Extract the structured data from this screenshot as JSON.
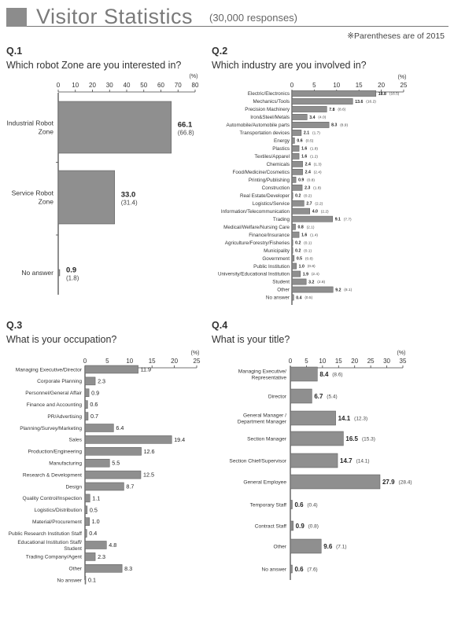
{
  "header": {
    "title": "Visitor Statistics",
    "subtitle": "(30,000 responses)",
    "note": "※Parentheses are of 2015"
  },
  "colors": {
    "bar": "#8f8f8f",
    "bar_stroke": "#555555",
    "axis": "#444444",
    "title": "#7a7a7a"
  },
  "chart_data": [
    {
      "id": "q1",
      "type": "bar",
      "orientation": "horizontal",
      "qnum": "Q.1",
      "question": "Which robot Zone are you interested in?",
      "unit": "(%)",
      "xlim": [
        0,
        80
      ],
      "ticks": [
        0,
        10,
        20,
        30,
        40,
        50,
        60,
        70,
        80
      ],
      "categories": [
        [
          "Industrial Robot",
          "Zone"
        ],
        [
          "Service Robot",
          "Zone"
        ],
        [
          "No answer"
        ]
      ],
      "values": [
        66.1,
        33.0,
        0.9
      ],
      "value_labels": [
        "66.1",
        "33.0",
        "0.9"
      ],
      "prev_labels": [
        "(66.8)",
        "(31.4)",
        "(1.8)"
      ]
    },
    {
      "id": "q2",
      "type": "bar",
      "orientation": "horizontal",
      "qnum": "Q.2",
      "question": "Which industry are you involved in?",
      "unit": "(%)",
      "xlim": [
        0,
        25
      ],
      "ticks": [
        0,
        5,
        10,
        15,
        20,
        25
      ],
      "categories": [
        "Electric/Electronics",
        "Mechanics/Tools",
        "Precision Machinery",
        "Iron&Steel/Metals",
        "Automobile/Automobile parts",
        "Transportation devices",
        "Energy",
        "Plastics",
        "Textiles/Apparel",
        "Chemicals",
        "Food/Medicine/Cosmetics",
        "Printing/Publishing",
        "Construction",
        "Real Estate/Developer",
        "Logistics/Service",
        "Information/Telecommunication",
        "Trading",
        "Medical/Welfare/Nursing Care",
        "Finance/Insurance",
        "Agriculture/Forestry/Fisheries",
        "Municipality",
        "Government",
        "Public Institution",
        "University/Educational Institution",
        "Student",
        "Other",
        "No answer"
      ],
      "values": [
        18.8,
        13.6,
        7.8,
        3.4,
        8.3,
        2.1,
        0.6,
        1.6,
        1.6,
        2.4,
        2.4,
        0.9,
        2.3,
        0.2,
        2.7,
        4.0,
        9.1,
        0.8,
        1.6,
        0.2,
        0.2,
        0.5,
        1.0,
        1.9,
        3.2,
        9.2,
        0.4
      ],
      "value_labels": [
        "18.8",
        "13.6",
        "7.8",
        "3.4",
        "8.3",
        "2.1",
        "0.6",
        "1.6",
        "1.6",
        "2.4",
        "2.4",
        "0.9",
        "2.3",
        "0.2",
        "2.7",
        "4.0",
        "9.1",
        "0.8",
        "1.6",
        "0.2",
        "0.2",
        "0.5",
        "1.0",
        "1.9",
        "3.2",
        "9.2",
        "0.4"
      ],
      "prev_labels": [
        "(16.5)",
        "(16.2)",
        "(8.6)",
        "(4.0)",
        "(8.9)",
        "(1.7)",
        "(0.5)",
        "(1.8)",
        "(1.2)",
        "(1.3)",
        "(2.4)",
        "(0.8)",
        "(1.8)",
        "(0.2)",
        "(2.2)",
        "(2.2)",
        "(7.7)",
        "(2.1)",
        "(1.4)",
        "(0.1)",
        "(0.1)",
        "(0.8)",
        "(0.8)",
        "(2.4)",
        "(2.8)",
        "(8.1)",
        "(0.5)"
      ]
    },
    {
      "id": "q3",
      "type": "bar",
      "orientation": "horizontal",
      "qnum": "Q.3",
      "question": "What is your occupation?",
      "unit": "(%)",
      "xlim": [
        0,
        25
      ],
      "ticks": [
        0,
        5,
        10,
        15,
        20,
        25
      ],
      "categories": [
        "Managing Executive/Director",
        "Corporate Planning",
        "Personnel/General Affair",
        "Finance and Accounting",
        "PR/Advertising",
        "Planning/Survey/Marketing",
        "Sales",
        "Production/Engineering",
        "Manufacturing",
        "Research & Development",
        "Design",
        "Quality Control/Inspection",
        "Logistics/Distribution",
        "Material/Procurement",
        "Public Research Institution Staff",
        [
          "Educational Institution Staff/",
          "Student"
        ],
        "Trading Company/Agent",
        "Other",
        "No answer"
      ],
      "values": [
        11.9,
        2.3,
        0.9,
        0.6,
        0.7,
        6.4,
        19.4,
        12.6,
        5.5,
        12.5,
        8.7,
        1.1,
        0.5,
        1.0,
        0.4,
        4.8,
        2.3,
        8.3,
        0.1
      ],
      "value_labels": [
        "11.9",
        "2.3",
        "0.9",
        "0.6",
        "0.7",
        "6.4",
        "19.4",
        "12.6",
        "5.5",
        "12.5",
        "8.7",
        "1.1",
        "0.5",
        "1.0",
        "0.4",
        "4.8",
        "2.3",
        "8.3",
        "0.1"
      ]
    },
    {
      "id": "q4",
      "type": "bar",
      "orientation": "horizontal",
      "qnum": "Q.4",
      "question": "What is your title?",
      "unit": "(%)",
      "xlim": [
        0,
        35
      ],
      "ticks": [
        0,
        5,
        10,
        15,
        20,
        25,
        30,
        35
      ],
      "categories": [
        [
          "Managing Executive/",
          "Representative"
        ],
        "Director",
        [
          "General Manager /",
          "Department Manager"
        ],
        "Section Manager",
        "Section Chief/Supervisor",
        "General Employee",
        "Temporary Staff",
        "Contract Staff",
        "Other",
        "No answer"
      ],
      "values": [
        8.4,
        6.7,
        14.1,
        16.5,
        14.7,
        27.9,
        0.6,
        0.9,
        9.6,
        0.6
      ],
      "value_labels": [
        "8.4",
        "6.7",
        "14.1",
        "16.5",
        "14.7",
        "27.9",
        "0.6",
        "0.9",
        "9.6",
        "0.6"
      ],
      "prev_labels": [
        "(8.6)",
        "(5.4)",
        "(12.3)",
        "(15.3)",
        "(14.1)",
        "(28.4)",
        "(0.4)",
        "(0.8)",
        "(7.1)",
        "(7.6)"
      ]
    }
  ]
}
